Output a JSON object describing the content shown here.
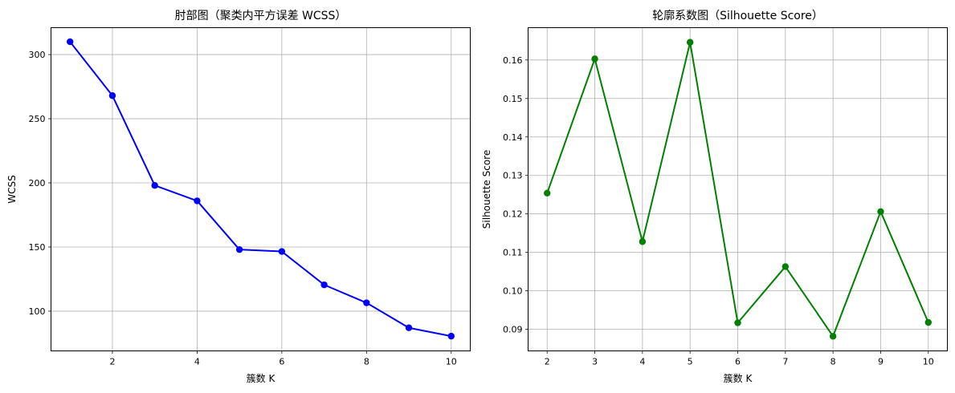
{
  "chart_data": [
    {
      "type": "line",
      "title": "肘部图（聚类内平方误差 WCSS）",
      "xlabel": "簇数 K",
      "ylabel": "WCSS",
      "x": [
        1,
        2,
        3,
        4,
        5,
        6,
        7,
        8,
        9,
        10
      ],
      "series": [
        {
          "values": [
            310,
            268,
            198,
            186,
            148,
            146.5,
            120.5,
            106.5,
            87,
            80.5
          ],
          "color": "#0000ff",
          "marker": "circle"
        }
      ],
      "xlim": [
        0.55,
        10.45
      ],
      "ylim": [
        69,
        321
      ],
      "xticks": [
        2,
        4,
        6,
        8,
        10
      ],
      "xtick_labels": [
        "2",
        "4",
        "6",
        "8",
        "10"
      ],
      "yticks": [
        100,
        150,
        200,
        250,
        300
      ],
      "ytick_labels": [
        "100",
        "150",
        "200",
        "250",
        "300"
      ],
      "grid": true,
      "legend": false
    },
    {
      "type": "line",
      "title": "轮廓系数图（Silhouette Score）",
      "xlabel": "簇数 K",
      "ylabel": "Silhouette Score",
      "x": [
        2,
        3,
        4,
        5,
        6,
        7,
        8,
        9,
        10
      ],
      "series": [
        {
          "values": [
            0.1254,
            0.1603,
            0.1128,
            0.1646,
            0.0917,
            0.1063,
            0.0882,
            0.1206,
            0.0918
          ],
          "color": "#008000",
          "marker": "circle"
        }
      ],
      "xlim": [
        1.6,
        10.4
      ],
      "ylim": [
        0.0844,
        0.1684
      ],
      "xticks": [
        2,
        3,
        4,
        5,
        6,
        7,
        8,
        9,
        10
      ],
      "xtick_labels": [
        "2",
        "3",
        "4",
        "5",
        "6",
        "7",
        "8",
        "9",
        "10"
      ],
      "yticks": [
        0.09,
        0.1,
        0.11,
        0.12,
        0.13,
        0.14,
        0.15,
        0.16
      ],
      "ytick_labels": [
        "0.09",
        "0.10",
        "0.11",
        "0.12",
        "0.13",
        "0.14",
        "0.15",
        "0.16"
      ],
      "grid": true,
      "legend": false
    }
  ]
}
